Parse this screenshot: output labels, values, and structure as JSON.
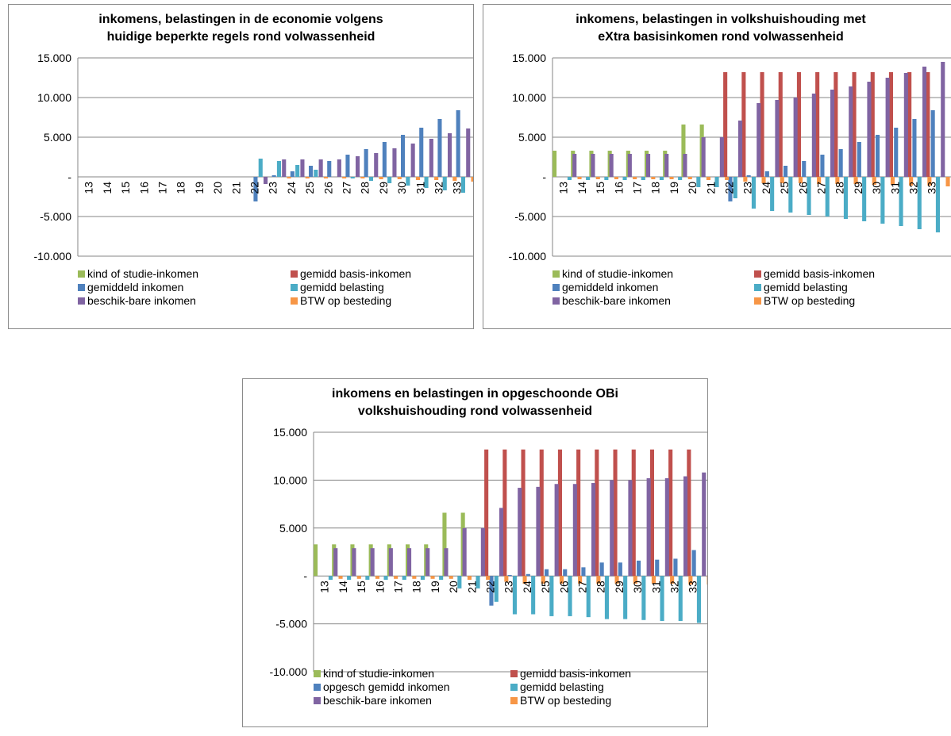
{
  "chart_data": [
    {
      "type": "bar",
      "title_lines": [
        "inkomens, belastingen in de economie volgens",
        "huidige beperkte regels rond volwassenheid"
      ],
      "xlabel": "",
      "ylabel": "",
      "ylim": [
        -10000,
        15000
      ],
      "y_ticks": [
        15000,
        10000,
        5000,
        0,
        -5000,
        -10000
      ],
      "y_tick_labels": [
        "15.000",
        "10.000",
        "5.000",
        "-",
        "-5.000",
        "-10.000"
      ],
      "grid": true,
      "legend_position": "bottom",
      "categories": [
        "13",
        "14",
        "15",
        "16",
        "17",
        "18",
        "19",
        "20",
        "21",
        "22",
        "23",
        "24",
        "25",
        "26",
        "27",
        "28",
        "29",
        "30",
        "31",
        "32",
        "33"
      ],
      "series": [
        {
          "name": "kind of studie-inkomen",
          "color": "#9bbb59",
          "values": [
            0,
            0,
            0,
            0,
            0,
            0,
            0,
            0,
            0,
            0,
            0,
            0,
            0,
            0,
            0,
            0,
            0,
            0,
            0,
            0,
            0
          ]
        },
        {
          "name": "gemidd basis-inkomen",
          "color": "#c0504d",
          "values": [
            0,
            0,
            0,
            0,
            0,
            0,
            0,
            0,
            0,
            0,
            0,
            0,
            0,
            0,
            0,
            0,
            0,
            0,
            0,
            0,
            0
          ]
        },
        {
          "name": "gemiddeld inkomen",
          "color": "#4f81bd",
          "values": [
            0,
            0,
            0,
            0,
            0,
            0,
            0,
            0,
            0,
            -3100,
            200,
            700,
            1400,
            2000,
            2800,
            3500,
            4400,
            5300,
            6200,
            7300,
            8400
          ]
        },
        {
          "name": "gemidd belasting",
          "color": "#4bacc6",
          "values": [
            0,
            0,
            0,
            0,
            0,
            0,
            0,
            0,
            0,
            2300,
            2000,
            1500,
            900,
            0,
            -200,
            -500,
            -800,
            -1100,
            -1400,
            -1700,
            -2000
          ]
        },
        {
          "name": "beschik-bare inkomen",
          "color": "#8064a2",
          "values": [
            0,
            0,
            0,
            0,
            0,
            0,
            0,
            0,
            0,
            -900,
            2200,
            2200,
            2200,
            2200,
            2600,
            3000,
            3600,
            4200,
            4800,
            5500,
            6100
          ]
        },
        {
          "name": "BTW op besteding",
          "color": "#f79646",
          "values": [
            0,
            0,
            0,
            0,
            0,
            0,
            0,
            0,
            0,
            0,
            -200,
            -200,
            -200,
            -200,
            -200,
            -300,
            -300,
            -400,
            -400,
            -500,
            -600
          ]
        }
      ]
    },
    {
      "type": "bar",
      "title_lines": [
        "inkomens, belastingen in volkshuishouding met",
        "eXtra basisinkomen rond volwassenheid"
      ],
      "xlabel": "",
      "ylabel": "",
      "ylim": [
        -10000,
        15000
      ],
      "y_ticks": [
        15000,
        10000,
        5000,
        0,
        -5000,
        -10000
      ],
      "y_tick_labels": [
        "15.000",
        "10.000",
        "5.000",
        "-",
        "-5.000",
        "-10.000"
      ],
      "grid": true,
      "legend_position": "bottom",
      "categories": [
        "13",
        "14",
        "15",
        "16",
        "17",
        "18",
        "19",
        "20",
        "21",
        "22",
        "23",
        "24",
        "25",
        "26",
        "27",
        "28",
        "29",
        "30",
        "31",
        "32",
        "33"
      ],
      "series": [
        {
          "name": "kind of studie-inkomen",
          "color": "#9bbb59",
          "values": [
            3300,
            3300,
            3300,
            3300,
            3300,
            3300,
            3300,
            6600,
            6600,
            0,
            0,
            0,
            0,
            0,
            0,
            0,
            0,
            0,
            0,
            0,
            0
          ]
        },
        {
          "name": "gemidd basis-inkomen",
          "color": "#c0504d",
          "values": [
            0,
            0,
            0,
            0,
            0,
            0,
            0,
            0,
            0,
            13200,
            13200,
            13200,
            13200,
            13200,
            13200,
            13200,
            13200,
            13200,
            13200,
            13200,
            13200
          ]
        },
        {
          "name": "gemiddeld inkomen",
          "color": "#4f81bd",
          "values": [
            0,
            0,
            0,
            0,
            0,
            0,
            0,
            0,
            0,
            -3100,
            200,
            700,
            1400,
            2000,
            2800,
            3500,
            4400,
            5300,
            6200,
            7300,
            8400
          ]
        },
        {
          "name": "gemidd belasting",
          "color": "#4bacc6",
          "values": [
            -400,
            -400,
            -400,
            -400,
            -400,
            -400,
            -400,
            -1300,
            -1300,
            -2700,
            -4000,
            -4300,
            -4500,
            -4800,
            -5000,
            -5300,
            -5600,
            -5900,
            -6200,
            -6600,
            -7000
          ]
        },
        {
          "name": "beschik-bare inkomen",
          "color": "#8064a2",
          "values": [
            2900,
            2900,
            2900,
            2900,
            2900,
            2900,
            2900,
            5000,
            5000,
            7100,
            9300,
            9700,
            10000,
            10500,
            11000,
            11400,
            12000,
            12500,
            13100,
            13900,
            14500
          ]
        },
        {
          "name": "BTW op besteding",
          "color": "#f79646",
          "values": [
            -300,
            -300,
            -300,
            -300,
            -300,
            -300,
            -300,
            -400,
            -400,
            -600,
            -800,
            -800,
            -800,
            -900,
            -900,
            -900,
            -1000,
            -1000,
            -1100,
            -1100,
            -1200
          ]
        }
      ]
    },
    {
      "type": "bar",
      "title_lines": [
        "inkomens en belastingen in opgeschoonde OBi",
        "volkshuishouding rond volwassenheid"
      ],
      "xlabel": "",
      "ylabel": "",
      "ylim": [
        -10000,
        15000
      ],
      "y_ticks": [
        15000,
        10000,
        5000,
        0,
        -5000,
        -10000
      ],
      "y_tick_labels": [
        "15.000",
        "10.000",
        "5.000",
        "-",
        "-5.000",
        "-10.000"
      ],
      "grid": true,
      "legend_position": "bottom",
      "categories": [
        "13",
        "14",
        "15",
        "16",
        "17",
        "18",
        "19",
        "20",
        "21",
        "22",
        "23",
        "24",
        "25",
        "26",
        "27",
        "28",
        "29",
        "30",
        "31",
        "32",
        "33"
      ],
      "series": [
        {
          "name": "kind of studie-inkomen",
          "color": "#9bbb59",
          "values": [
            3300,
            3300,
            3300,
            3300,
            3300,
            3300,
            3300,
            6600,
            6600,
            0,
            0,
            0,
            0,
            0,
            0,
            0,
            0,
            0,
            0,
            0,
            0
          ]
        },
        {
          "name": "gemidd basis-inkomen",
          "color": "#c0504d",
          "values": [
            0,
            0,
            0,
            0,
            0,
            0,
            0,
            0,
            0,
            13200,
            13200,
            13200,
            13200,
            13200,
            13200,
            13200,
            13200,
            13200,
            13200,
            13200,
            13200
          ]
        },
        {
          "name": "opgesch gemidd inkomen",
          "color": "#4f81bd",
          "values": [
            0,
            0,
            0,
            0,
            0,
            0,
            0,
            0,
            0,
            -3100,
            100,
            200,
            700,
            700,
            900,
            1400,
            1400,
            1600,
            1700,
            1800,
            2700
          ]
        },
        {
          "name": "gemidd belasting",
          "color": "#4bacc6",
          "values": [
            -400,
            -400,
            -400,
            -400,
            -400,
            -400,
            -400,
            -1300,
            -1300,
            -2700,
            -4000,
            -4000,
            -4200,
            -4200,
            -4300,
            -4500,
            -4500,
            -4600,
            -4700,
            -4700,
            -4900
          ]
        },
        {
          "name": "beschik-bare inkomen",
          "color": "#8064a2",
          "values": [
            2900,
            2900,
            2900,
            2900,
            2900,
            2900,
            2900,
            5000,
            5000,
            7100,
            9200,
            9300,
            9600,
            9600,
            9700,
            10000,
            10000,
            10200,
            10200,
            10400,
            10800
          ]
        },
        {
          "name": "BTW op besteding",
          "color": "#f79646",
          "values": [
            -300,
            -300,
            -300,
            -300,
            -300,
            -300,
            -300,
            -400,
            -400,
            -600,
            -800,
            -800,
            -800,
            -800,
            -800,
            -800,
            -800,
            -800,
            -800,
            -900,
            -900
          ]
        }
      ]
    }
  ]
}
